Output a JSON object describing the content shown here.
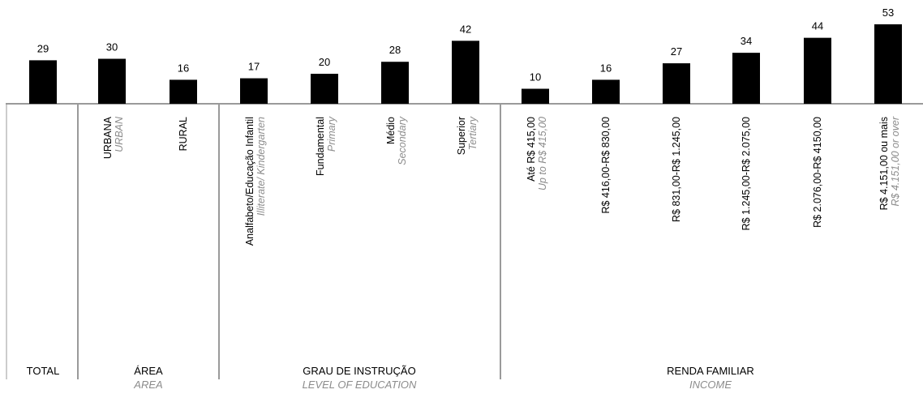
{
  "chart_data": {
    "type": "bar",
    "bar_color": "#000000",
    "axis_color": "#9a9a9a",
    "grid": false,
    "ylim": [
      0,
      53
    ],
    "categories": [
      {
        "pt": "TOTAL",
        "en": "",
        "value": 29,
        "group": 0,
        "show_label": false
      },
      {
        "pt": "URBANA",
        "en": "URBAN",
        "value": 30,
        "group": 1,
        "show_label": true
      },
      {
        "pt": "RURAL",
        "en": "",
        "value": 16,
        "group": 1,
        "show_label": true
      },
      {
        "pt": "Analfabeto/Educação Infantil",
        "en": "Illiterate/ Kindergarten",
        "value": 17,
        "group": 2,
        "show_label": true
      },
      {
        "pt": "Fundamental",
        "en": "Primary",
        "value": 20,
        "group": 2,
        "show_label": true
      },
      {
        "pt": "Médio",
        "en": "Secondary",
        "value": 28,
        "group": 2,
        "show_label": true
      },
      {
        "pt": "Superior",
        "en": "Tertiary",
        "value": 42,
        "group": 2,
        "show_label": true
      },
      {
        "pt": "Até R$ 415,00",
        "en": "Up to R$ 415,00",
        "value": 10,
        "group": 3,
        "show_label": true
      },
      {
        "pt": "R$ 416,00-R$ 830,00",
        "en": "",
        "value": 16,
        "group": 3,
        "show_label": true
      },
      {
        "pt": "R$ 831,00-R$ 1.245,00",
        "en": "",
        "value": 27,
        "group": 3,
        "show_label": true
      },
      {
        "pt": "R$ 1.245,00-R$ 2.075,00",
        "en": "",
        "value": 34,
        "group": 3,
        "show_label": true
      },
      {
        "pt": "R$ 2.076,00-R$ 4150,00",
        "en": "",
        "value": 44,
        "group": 3,
        "show_label": true
      },
      {
        "pt": "R$ 4.151,00 ou mais",
        "en": "R$ 4.151,00 or over",
        "value": 53,
        "group": 3,
        "show_label": true
      }
    ],
    "groups": [
      {
        "pt": "TOTAL",
        "en": ""
      },
      {
        "pt": "ÁREA",
        "en": "AREA"
      },
      {
        "pt": "GRAU DE INSTRUÇÃO",
        "en": "LEVEL OF EDUCATION"
      },
      {
        "pt": "RENDA FAMILIAR",
        "en": "INCOME"
      }
    ]
  }
}
